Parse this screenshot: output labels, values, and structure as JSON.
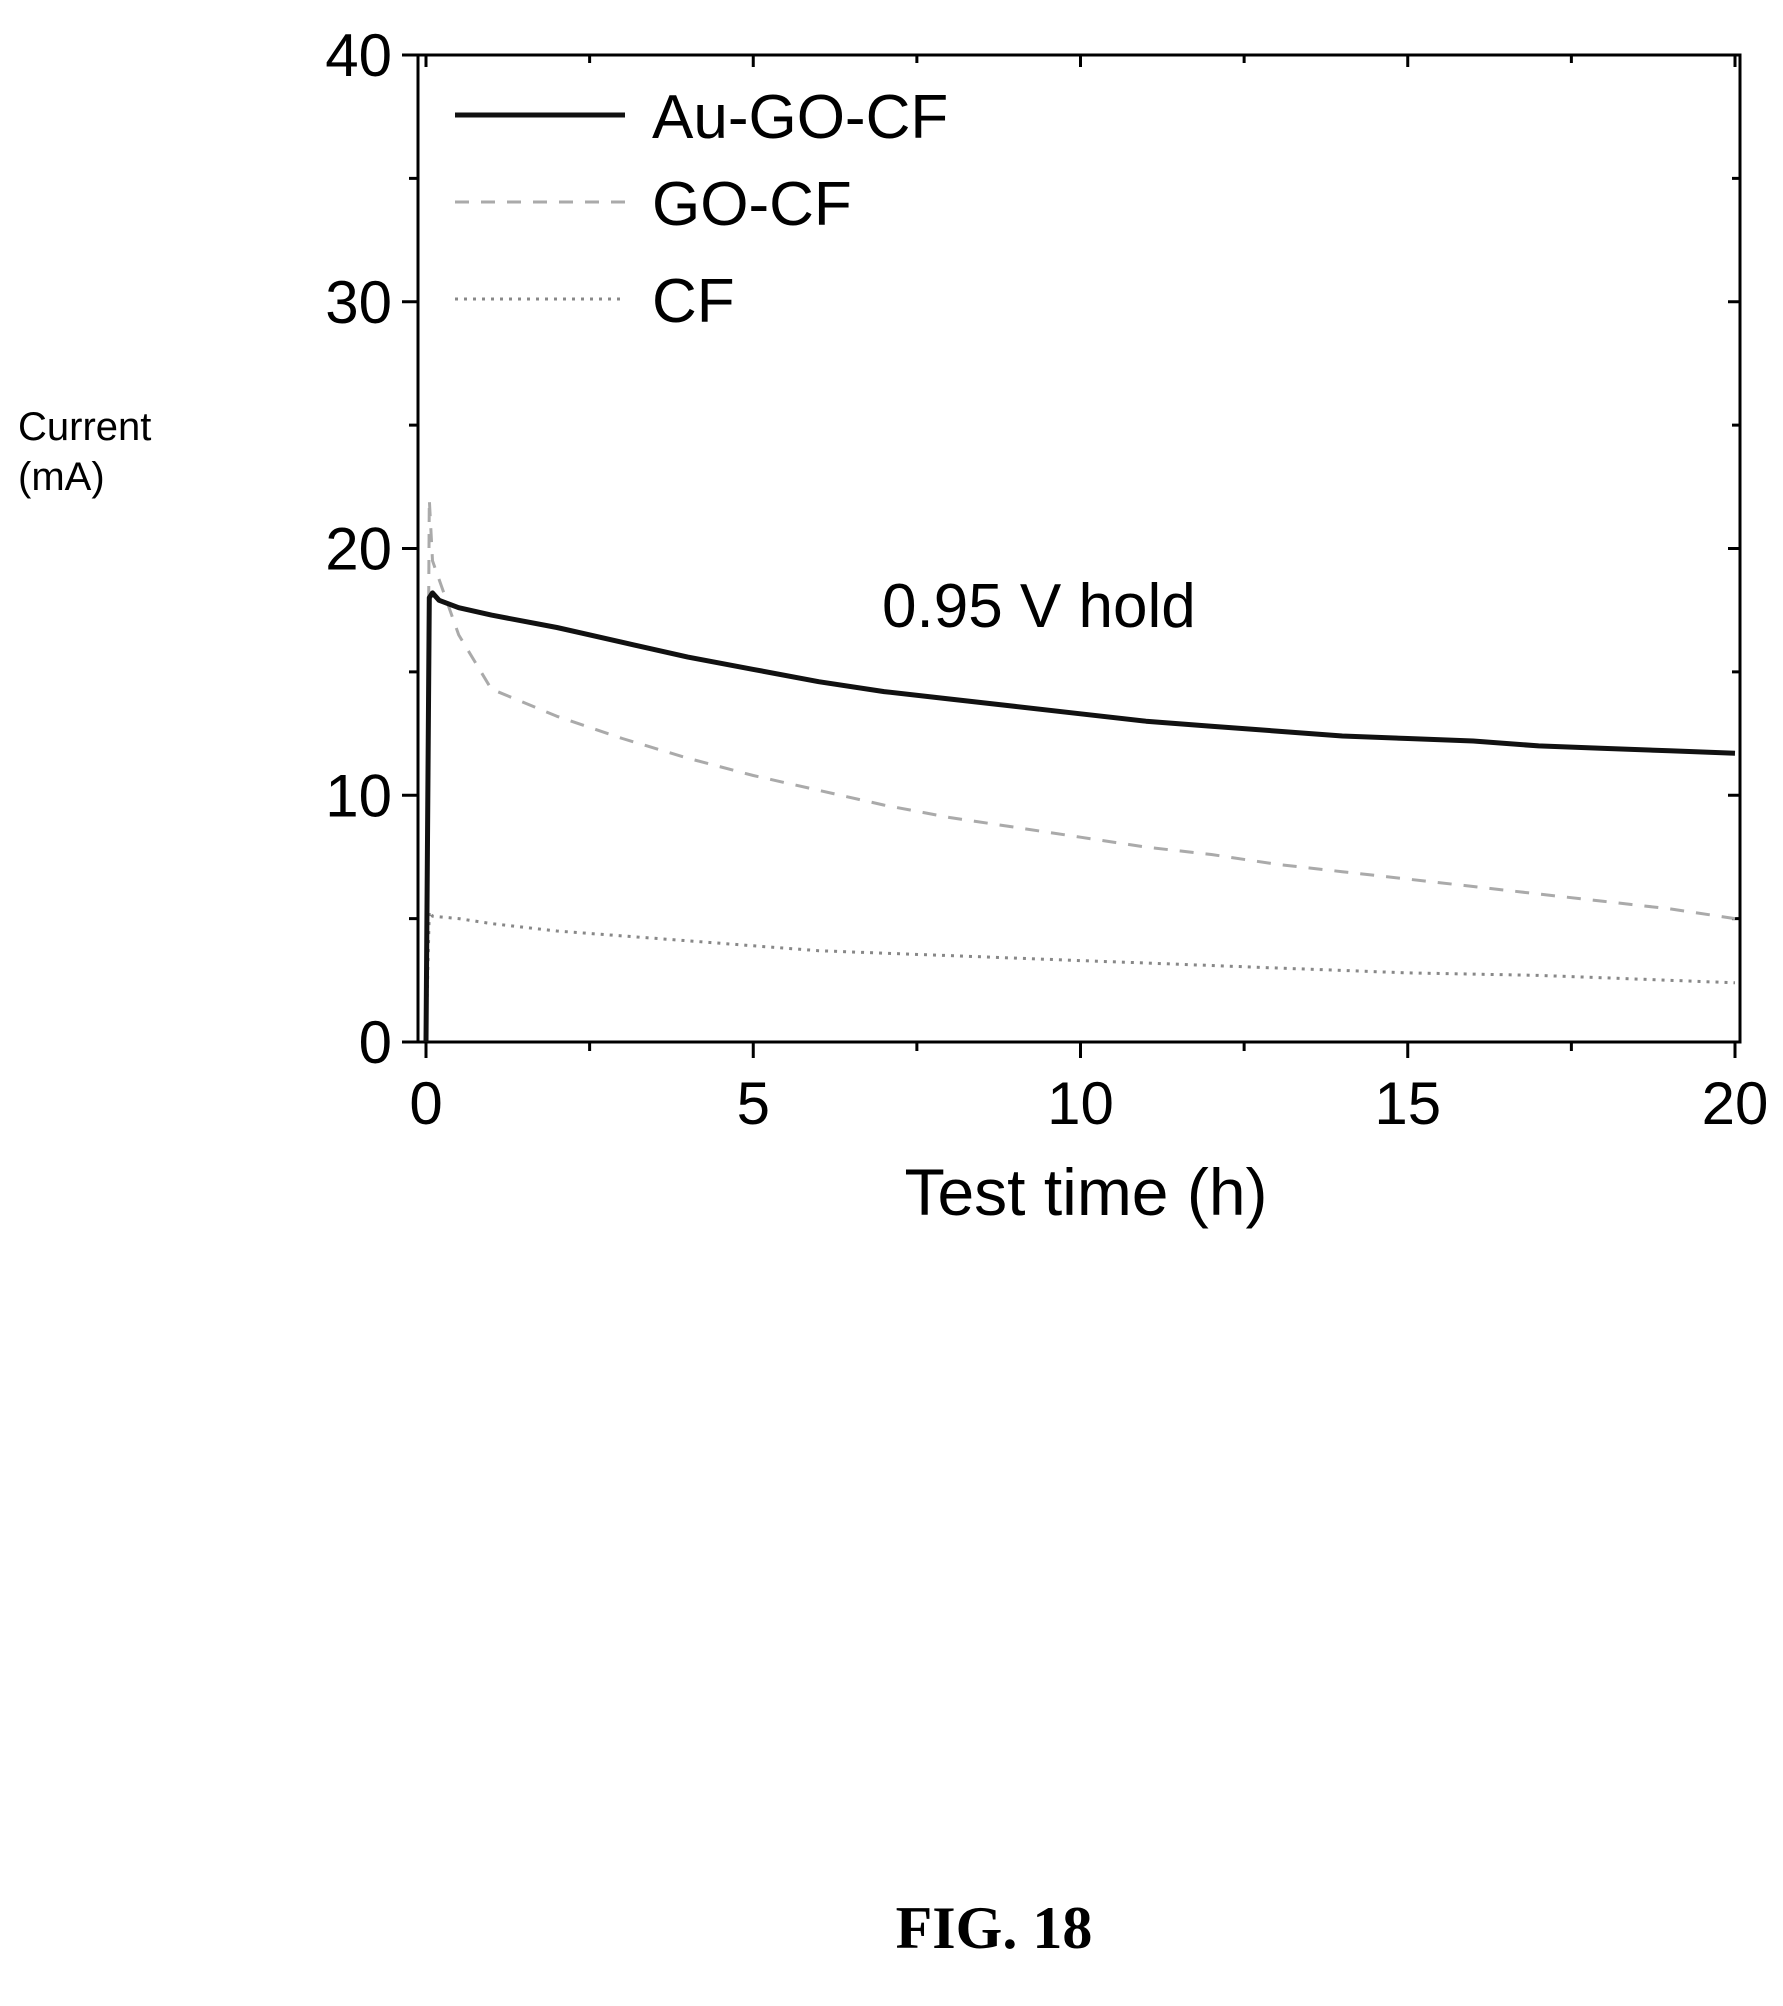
{
  "figure_caption": "FIG. 18",
  "chart_data": {
    "type": "line",
    "title": "",
    "xlabel": "Test time (h)",
    "ylabel_lines": [
      "Current",
      "(mA)"
    ],
    "xlim": [
      0,
      20
    ],
    "ylim": [
      0,
      40
    ],
    "xticks": [
      0,
      5,
      10,
      15,
      20
    ],
    "yticks": [
      0,
      10,
      20,
      30,
      40
    ],
    "xtick_labels": [
      "0",
      "5",
      "10",
      "15",
      "20"
    ],
    "ytick_labels": [
      "0",
      "10",
      "20",
      "30",
      "40"
    ],
    "grid": false,
    "legend_position": "top-left",
    "annotation": "0.95 V hold",
    "series": [
      {
        "name": "Au-GO-CF",
        "style": "solid",
        "color": "#111111",
        "x": [
          0,
          0.05,
          0.1,
          0.2,
          0.5,
          1,
          2,
          3,
          4,
          5,
          6,
          7,
          8,
          9,
          10,
          11,
          12,
          13,
          14,
          15,
          16,
          17,
          18,
          19,
          20
        ],
        "y": [
          0,
          18.0,
          18.2,
          17.9,
          17.6,
          17.3,
          16.8,
          16.2,
          15.6,
          15.1,
          14.6,
          14.2,
          13.9,
          13.6,
          13.3,
          13.0,
          12.8,
          12.6,
          12.4,
          12.3,
          12.2,
          12.0,
          11.9,
          11.8,
          11.7
        ]
      },
      {
        "name": "GO-CF",
        "style": "dashed",
        "color": "#aaaaaa",
        "x": [
          0,
          0.05,
          0.1,
          0.5,
          1,
          2,
          3,
          4,
          5,
          6,
          7,
          8,
          9,
          10,
          11,
          12,
          13,
          14,
          15,
          16,
          17,
          18,
          19,
          20
        ],
        "y": [
          0,
          22.0,
          19.5,
          16.5,
          14.3,
          13.2,
          12.3,
          11.5,
          10.8,
          10.2,
          9.6,
          9.1,
          8.7,
          8.3,
          7.9,
          7.6,
          7.2,
          6.9,
          6.6,
          6.3,
          6.0,
          5.7,
          5.4,
          5.0
        ]
      },
      {
        "name": "CF",
        "style": "dotted",
        "color": "#888888",
        "x": [
          0,
          0.05,
          0.1,
          0.5,
          1,
          2,
          3,
          4,
          5,
          6,
          7,
          8,
          9,
          10,
          11,
          12,
          13,
          14,
          15,
          16,
          17,
          18,
          19,
          20
        ],
        "y": [
          0,
          5.3,
          5.1,
          5.0,
          4.8,
          4.5,
          4.3,
          4.1,
          3.9,
          3.7,
          3.6,
          3.5,
          3.4,
          3.3,
          3.2,
          3.1,
          3.0,
          2.9,
          2.8,
          2.75,
          2.7,
          2.6,
          2.5,
          2.4
        ]
      }
    ]
  }
}
